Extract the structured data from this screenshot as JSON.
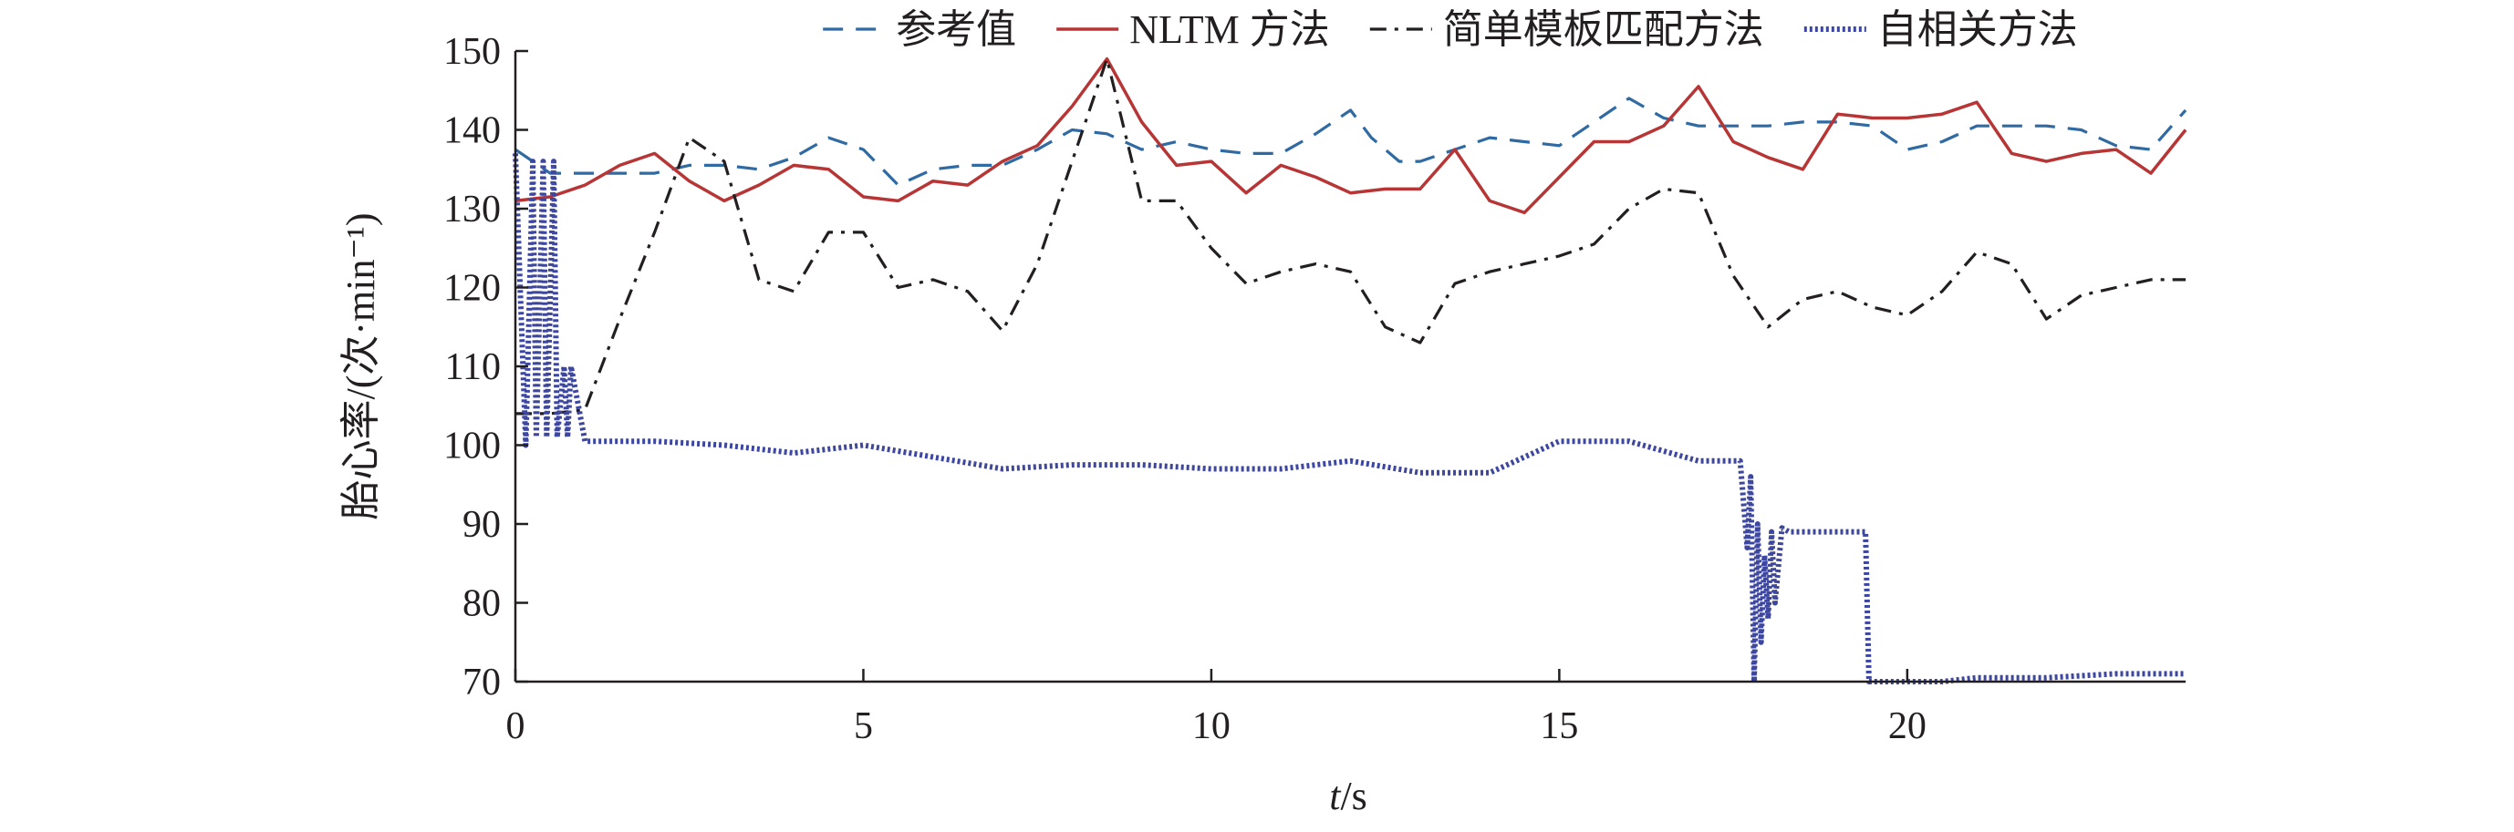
{
  "chart_data": {
    "type": "line",
    "xlabel_italic": "t",
    "xlabel_rest": "/s",
    "ylabel": "胎心率/(次·min⁻¹)",
    "xlim": [
      0,
      24
    ],
    "ylim": [
      70,
      150
    ],
    "xticks": [
      0,
      5,
      10,
      15,
      20
    ],
    "yticks": [
      70,
      80,
      90,
      100,
      110,
      120,
      130,
      140,
      150
    ],
    "legend_position": "top",
    "grid": false,
    "series": [
      {
        "name": "参考值",
        "style": "dashed",
        "color": "#2f6aa3",
        "x": [
          0,
          0.5,
          1,
          1.5,
          2,
          2.5,
          3,
          3.5,
          4,
          4.5,
          5,
          5.5,
          6,
          6.5,
          7,
          7.5,
          8,
          8.5,
          9,
          9.5,
          10,
          10.5,
          11,
          11.5,
          12,
          12.3,
          12.7,
          13,
          13.5,
          14,
          14.5,
          15,
          15.5,
          16,
          16.5,
          17,
          17.5,
          18,
          18.5,
          19,
          19.5,
          20,
          20.5,
          21,
          21.5,
          22,
          22.5,
          23,
          23.5,
          24
        ],
        "y": [
          137.5,
          134.5,
          134.5,
          134.5,
          134.5,
          135.5,
          135.5,
          135,
          136.5,
          139,
          137.5,
          133,
          135,
          135.5,
          135.5,
          137.5,
          140,
          139.5,
          137.5,
          138.5,
          137.5,
          137,
          137,
          139.5,
          142.5,
          139,
          136,
          136,
          137.5,
          139,
          138.5,
          138,
          141,
          144,
          141.5,
          140.5,
          140.5,
          140.5,
          141,
          141,
          140.5,
          137.5,
          138.5,
          140.5,
          140.5,
          140.5,
          140,
          138,
          137.5,
          142.5
        ]
      },
      {
        "name": "NLTM 方法",
        "style": "solid",
        "color": "#b83535",
        "x": [
          0,
          0.5,
          1,
          1.5,
          2,
          2.5,
          3,
          3.5,
          4,
          4.5,
          5,
          5.5,
          6,
          6.5,
          7,
          7.5,
          8,
          8.5,
          9,
          9.5,
          10,
          10.5,
          11,
          11.5,
          12,
          12.5,
          13,
          13.5,
          14,
          14.5,
          15,
          15.5,
          16,
          16.5,
          17,
          17.5,
          18,
          18.5,
          19,
          19.5,
          20,
          20.5,
          21,
          21.5,
          22,
          22.5,
          23,
          23.5,
          24
        ],
        "y": [
          131,
          131.5,
          133,
          135.5,
          137,
          133.5,
          131,
          133,
          135.5,
          135,
          131.5,
          131,
          133.5,
          133,
          136,
          138,
          143,
          149,
          141,
          135.5,
          136,
          132,
          135.5,
          134,
          132,
          132.5,
          132.5,
          137.5,
          131,
          129.5,
          134,
          138.5,
          138.5,
          140.5,
          145.5,
          138.5,
          136.5,
          135,
          142,
          141.5,
          141.5,
          142,
          143.5,
          137,
          136,
          137,
          137.5,
          134.5,
          140
        ]
      },
      {
        "name": "简单模板匹配方法",
        "style": "dashdot",
        "color": "#231f20",
        "x": [
          0,
          0.5,
          1,
          1.5,
          2,
          2.5,
          3,
          3.5,
          4,
          4.5,
          5,
          5.5,
          6,
          6.5,
          7,
          7.5,
          8,
          8.5,
          9,
          9.5,
          10,
          10.5,
          11,
          11.5,
          12,
          12.5,
          13,
          13.5,
          14,
          14.5,
          15,
          15.5,
          16,
          16.5,
          17,
          17.5,
          18,
          18.5,
          19,
          19.5,
          20,
          20.5,
          21,
          21.5,
          22,
          22.5,
          23,
          23.5,
          24
        ],
        "y": [
          104,
          104,
          104.5,
          116,
          127,
          139,
          136,
          121,
          119.5,
          127,
          127,
          120,
          121,
          119.5,
          114.5,
          123,
          136,
          149,
          131,
          131,
          125,
          120.5,
          122,
          123,
          122,
          115,
          113,
          120.5,
          122,
          123,
          124,
          125.5,
          130,
          132.5,
          132,
          121.5,
          115,
          118.5,
          119.5,
          117.5,
          116.5,
          119.5,
          124.5,
          123,
          116,
          119,
          120,
          121,
          121
        ]
      },
      {
        "name": "自相关方法",
        "style": "dotted",
        "color": "#3d47a0",
        "x": [
          0,
          0.15,
          0.25,
          0.3,
          0.4,
          0.45,
          0.55,
          0.6,
          0.7,
          0.75,
          0.8,
          1,
          2,
          3,
          4,
          5,
          6,
          7,
          8,
          9,
          10,
          11,
          12,
          13,
          14,
          15,
          16,
          17,
          17.6,
          17.7,
          17.75,
          17.8,
          17.85,
          17.9,
          17.95,
          18.0,
          18.05,
          18.1,
          18.2,
          18.3,
          18.5,
          19,
          19.4,
          19.45,
          19.5,
          20,
          20.5,
          21,
          22,
          23,
          24
        ],
        "y": [
          137,
          100,
          136,
          101,
          136,
          101,
          136,
          101,
          110,
          101,
          110,
          100.5,
          100.5,
          100,
          99,
          100,
          98.5,
          97,
          97.5,
          97.5,
          97,
          97,
          98,
          96.5,
          96.5,
          100.5,
          100.5,
          98,
          98,
          87,
          96,
          70,
          90,
          75,
          86,
          78,
          89,
          80,
          89.5,
          89,
          89,
          89,
          89,
          70,
          70,
          70,
          70,
          70.5,
          70.5,
          71,
          71
        ]
      }
    ]
  }
}
